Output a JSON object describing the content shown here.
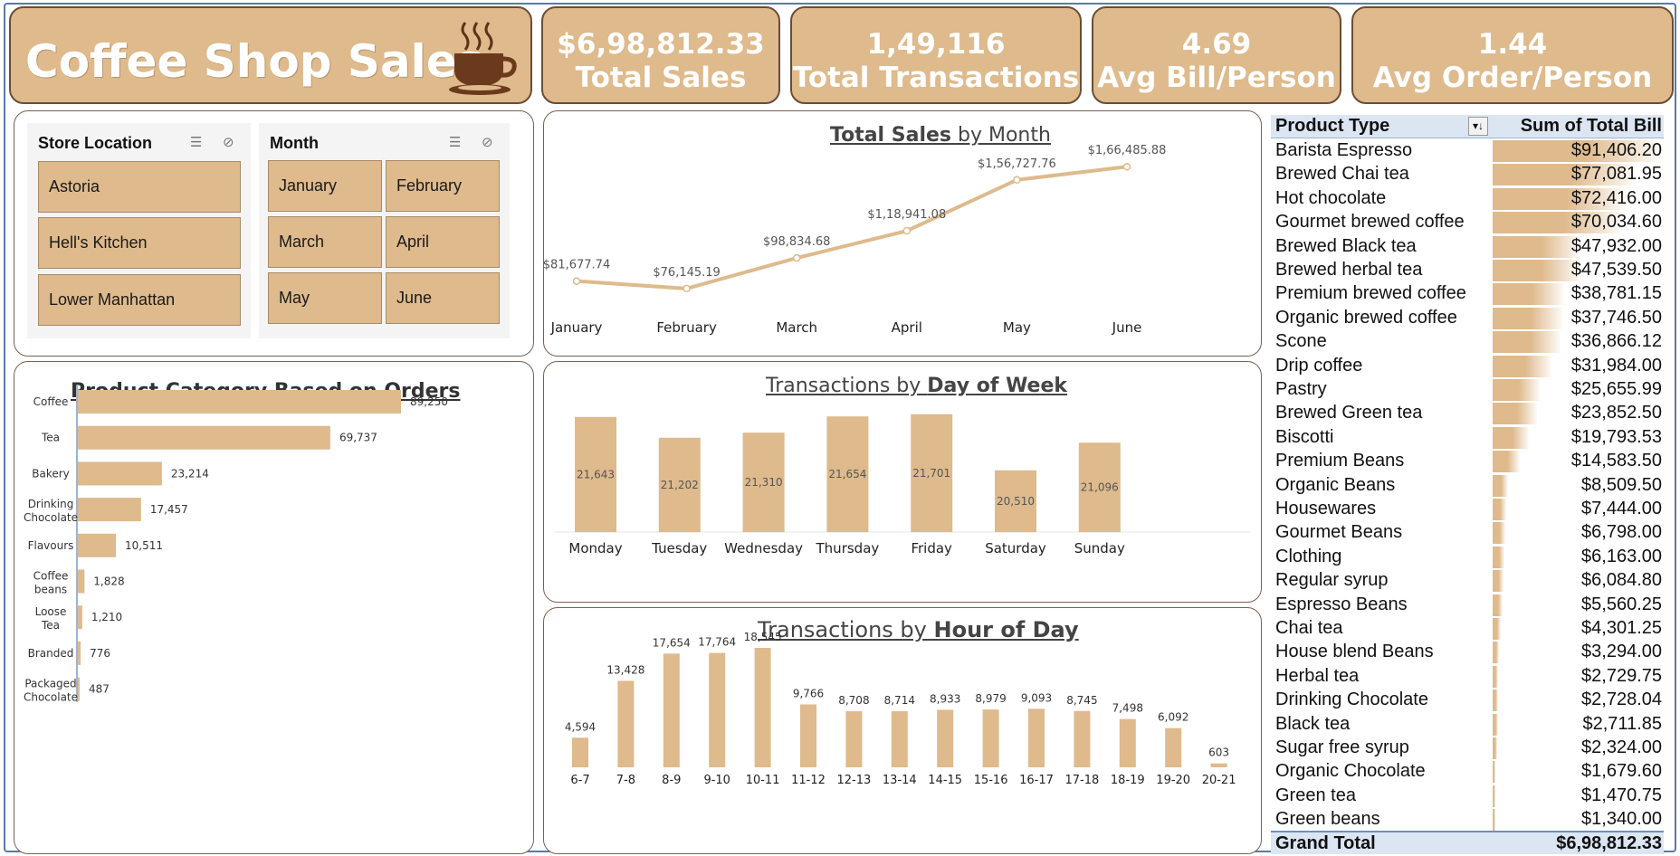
{
  "header": {
    "title": "Coffee Shop Sales",
    "kpis": [
      {
        "value": "$6,98,812.33",
        "label": "Total Sales"
      },
      {
        "value": "1,49,116",
        "label": "Total Transactions"
      },
      {
        "value": "4.69",
        "label": "Avg Bill/Person"
      },
      {
        "value": "1.44",
        "label": "Avg Order/Person"
      }
    ]
  },
  "slicers": {
    "store": {
      "title": "Store Location",
      "items": [
        "Astoria",
        "Hell's Kitchen",
        "Lower Manhattan"
      ]
    },
    "month": {
      "title": "Month",
      "items": [
        "January",
        "February",
        "March",
        "April",
        "May",
        "June"
      ]
    }
  },
  "colors": {
    "accent": "#deba8c",
    "border": "#6b4d36",
    "line": "#deba8c",
    "pivot_header": "#dce6f2"
  },
  "chart_data": [
    {
      "id": "monthly",
      "type": "line",
      "title_part1": "Total Sales",
      "title_part2": " by Month",
      "categories": [
        "January",
        "February",
        "March",
        "April",
        "May",
        "June"
      ],
      "values": [
        81677.74,
        76145.19,
        98834.68,
        118941.08,
        156727.76,
        166485.88
      ],
      "labels": [
        "$81,677.74",
        "$76,145.19",
        "$98,834.68",
        "$1,18,941.08",
        "$1,56,727.76",
        "$1,66,485.88"
      ],
      "ylim": [
        0,
        180000
      ],
      "grid": false,
      "legend": "none"
    },
    {
      "id": "category",
      "type": "bar",
      "orientation": "horizontal",
      "title": "Product Category Based on Orders",
      "categories": [
        "Coffee",
        "Tea",
        "Bakery",
        "Drinking Chocolate",
        "Flavours",
        "Coffee beans",
        "Loose Tea",
        "Branded",
        "Packaged Chocolate"
      ],
      "values": [
        89250,
        69737,
        23214,
        17457,
        10511,
        1828,
        1210,
        776,
        487
      ],
      "labels": [
        "89,250",
        "69,737",
        "23,214",
        "17,457",
        "10,511",
        "1,828",
        "1,210",
        "776",
        "487"
      ],
      "xlim": [
        0,
        89250
      ],
      "grid": false
    },
    {
      "id": "weekday",
      "type": "bar",
      "title_part1": "Transactions by ",
      "title_part2": "Day of  Week",
      "categories": [
        "Monday",
        "Tuesday",
        "Wednesday",
        "Thursday",
        "Friday",
        "Saturday",
        "Sunday"
      ],
      "values": [
        21643,
        21202,
        21310,
        21654,
        21701,
        20510,
        21096
      ],
      "labels": [
        "21,643",
        "21,202",
        "21,310",
        "21,654",
        "21,701",
        "20,510",
        "21,096"
      ],
      "ylim": [
        19200,
        21850
      ],
      "grid": false
    },
    {
      "id": "hourly",
      "type": "bar",
      "title_part1": "Transactions by ",
      "title_part2": "Hour of Day",
      "categories": [
        "6-7",
        "7-8",
        "8-9",
        "9-10",
        "10-11",
        "11-12",
        "12-13",
        "13-14",
        "14-15",
        "15-16",
        "16-17",
        "17-18",
        "18-19",
        "19-20",
        "20-21"
      ],
      "values": [
        4594,
        13428,
        17654,
        17764,
        18545,
        9766,
        8708,
        8714,
        8933,
        8979,
        9093,
        8745,
        7498,
        6092,
        603
      ],
      "labels": [
        "4,594",
        "13,428",
        "17,654",
        "17,764",
        "18,545",
        "9,766",
        "8,708",
        "8,714",
        "8,933",
        "8,979",
        "9,093",
        "8,745",
        "7,498",
        "6,092",
        "603"
      ],
      "ylim": [
        0,
        18545
      ],
      "grid": false
    },
    {
      "id": "product_type",
      "type": "table",
      "columns": [
        "Product Type",
        "Sum of Total Bill"
      ],
      "rows": [
        [
          "Barista Espresso",
          "$91,406.20",
          91406.2
        ],
        [
          "Brewed Chai tea",
          "$77,081.95",
          77081.95
        ],
        [
          "Hot chocolate",
          "$72,416.00",
          72416.0
        ],
        [
          "Gourmet brewed coffee",
          "$70,034.60",
          70034.6
        ],
        [
          "Brewed Black tea",
          "$47,932.00",
          47932.0
        ],
        [
          "Brewed herbal tea",
          "$47,539.50",
          47539.5
        ],
        [
          "Premium brewed coffee",
          "$38,781.15",
          38781.15
        ],
        [
          "Organic brewed coffee",
          "$37,746.50",
          37746.5
        ],
        [
          "Scone",
          "$36,866.12",
          36866.12
        ],
        [
          "Drip coffee",
          "$31,984.00",
          31984.0
        ],
        [
          "Pastry",
          "$25,655.99",
          25655.99
        ],
        [
          "Brewed Green tea",
          "$23,852.50",
          23852.5
        ],
        [
          "Biscotti",
          "$19,793.53",
          19793.53
        ],
        [
          "Premium Beans",
          "$14,583.50",
          14583.5
        ],
        [
          "Organic Beans",
          "$8,509.50",
          8509.5
        ],
        [
          "Housewares",
          "$7,444.00",
          7444.0
        ],
        [
          "Gourmet Beans",
          "$6,798.00",
          6798.0
        ],
        [
          "Clothing",
          "$6,163.00",
          6163.0
        ],
        [
          "Regular syrup",
          "$6,084.80",
          6084.8
        ],
        [
          "Espresso Beans",
          "$5,560.25",
          5560.25
        ],
        [
          "Chai tea",
          "$4,301.25",
          4301.25
        ],
        [
          "House blend Beans",
          "$3,294.00",
          3294.0
        ],
        [
          "Herbal tea",
          "$2,729.75",
          2729.75
        ],
        [
          "Drinking Chocolate",
          "$2,728.04",
          2728.04
        ],
        [
          "Black tea",
          "$2,711.85",
          2711.85
        ],
        [
          "Sugar free syrup",
          "$2,324.00",
          2324.0
        ],
        [
          "Organic Chocolate",
          "$1,679.60",
          1679.6
        ],
        [
          "Green tea",
          "$1,470.75",
          1470.75
        ],
        [
          "Green beans",
          "$1,340.00",
          1340.0
        ]
      ],
      "total_label": "Grand Total",
      "total_value": "$6,98,812.33"
    }
  ]
}
